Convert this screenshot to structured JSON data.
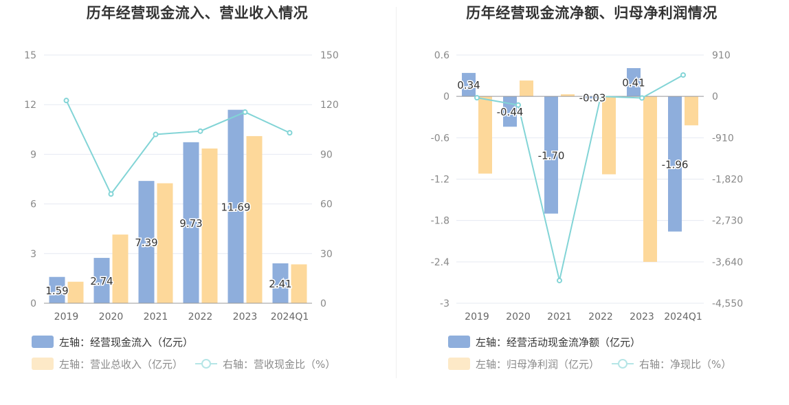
{
  "left": {
    "title": "历年经营现金流入、营业收入情况",
    "legend": {
      "bar1": "左轴：经营现金流入（亿元）",
      "bar2": "左轴：营业总收入（亿元）",
      "line": "右轴：营收现金比（%）"
    }
  },
  "right": {
    "title": "历年经营现金流净额、归母净利润情况",
    "legend": {
      "bar1": "左轴：经营活动现金流净额（亿元）",
      "bar2": "左轴：归母净利润（亿元）",
      "line": "右轴：净现比（%）"
    }
  },
  "colors": {
    "bar1": "#8eaedc",
    "bar2": "#fdd89a",
    "line": "#82d4d6"
  },
  "chart_data": [
    {
      "type": "bar",
      "title": "历年经营现金流入、营业收入情况",
      "categories": [
        "2019",
        "2020",
        "2021",
        "2022",
        "2023",
        "2024Q1"
      ],
      "left_axis": {
        "ylim": [
          0,
          15
        ],
        "ticks": [
          "0",
          "3",
          "6",
          "9",
          "12",
          "15"
        ]
      },
      "right_axis": {
        "ylim": [
          0,
          150
        ],
        "ticks": [
          "0",
          "30",
          "60",
          "90",
          "120",
          "150"
        ]
      },
      "series": [
        {
          "name": "左轴：经营现金流入（亿元）",
          "axis": "left",
          "type": "bar",
          "values": [
            1.59,
            2.74,
            7.39,
            9.73,
            11.69,
            2.41
          ],
          "labels": [
            "1.59",
            "2.74",
            "7.39",
            "9.73",
            "11.69",
            "2.41"
          ]
        },
        {
          "name": "左轴：营业总收入（亿元）",
          "axis": "left",
          "type": "bar",
          "values": [
            1.3,
            4.15,
            7.25,
            9.35,
            10.1,
            2.35
          ]
        },
        {
          "name": "右轴：营收现金比（%）",
          "axis": "right",
          "type": "line",
          "values": [
            122.5,
            66,
            102,
            104,
            115.5,
            103
          ]
        }
      ],
      "grid": true,
      "legend_position": "bottom-left"
    },
    {
      "type": "bar",
      "title": "历年经营现金流净额、归母净利润情况",
      "categories": [
        "2019",
        "2020",
        "2021",
        "2022",
        "2023",
        "2024Q1"
      ],
      "left_axis": {
        "ylim": [
          -3,
          0.6
        ],
        "ticks": [
          "-3",
          "-2.4",
          "-1.8",
          "-1.2",
          "-0.6",
          "0",
          "0.6"
        ]
      },
      "right_axis": {
        "ylim": [
          -4550,
          910
        ],
        "ticks": [
          "-4,550",
          "-3,640",
          "-2,730",
          "-1,820",
          "-910",
          "0",
          "910"
        ]
      },
      "series": [
        {
          "name": "左轴：经营活动现金流净额（亿元）",
          "axis": "left",
          "type": "bar",
          "values": [
            0.34,
            -0.44,
            -1.7,
            -0.03,
            0.41,
            -1.96
          ],
          "labels": [
            "0.34",
            "-0.44",
            "-1.70",
            "-0.03",
            "0.41",
            "-1.96"
          ]
        },
        {
          "name": "左轴：归母净利润（亿元）",
          "axis": "left",
          "type": "bar",
          "values": [
            -1.12,
            0.23,
            0.03,
            -1.13,
            -2.4,
            -0.42
          ]
        },
        {
          "name": "右轴：净现比（%）",
          "axis": "right",
          "type": "line",
          "values": [
            -30,
            -190,
            -4050,
            0,
            -35,
            470
          ]
        }
      ],
      "grid": true,
      "legend_position": "bottom-left"
    }
  ]
}
